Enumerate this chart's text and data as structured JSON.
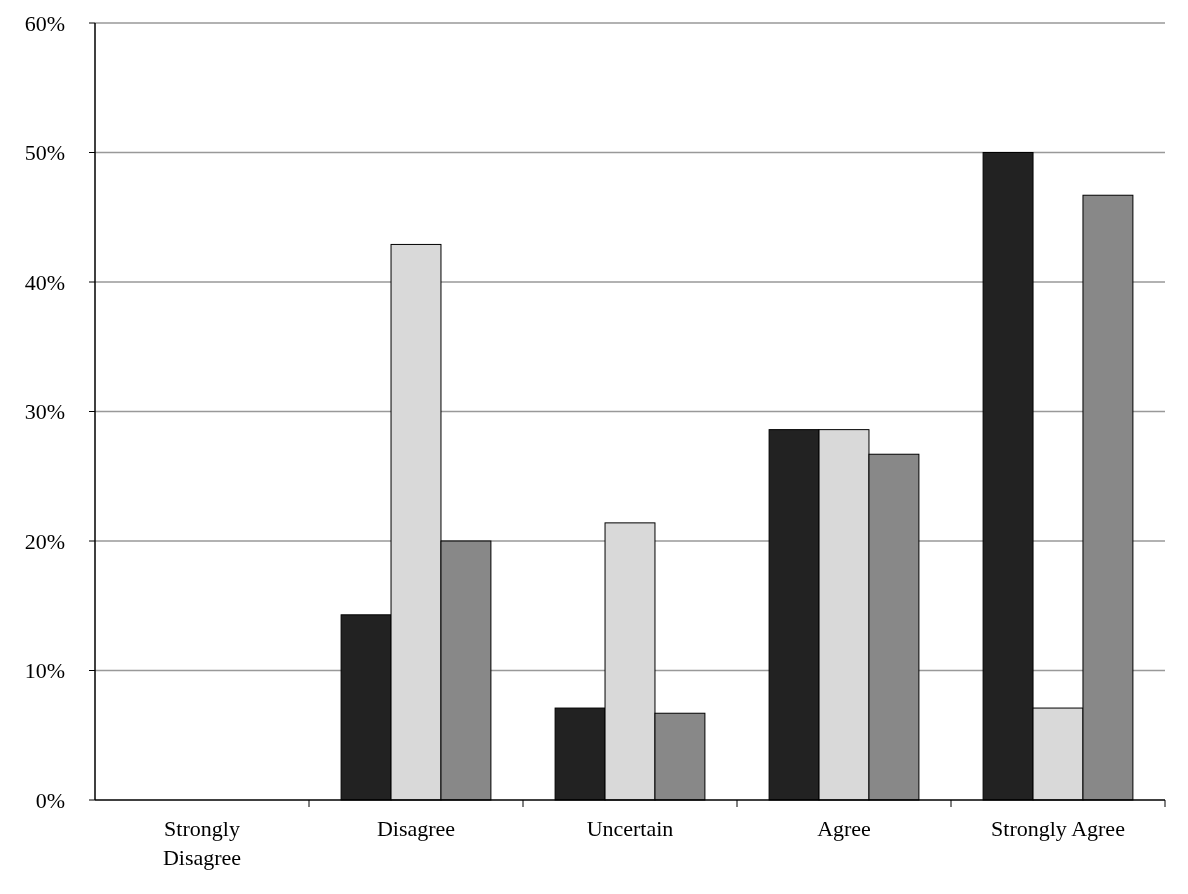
{
  "chart_data": {
    "type": "bar",
    "categories": [
      "Strongly Disagree",
      "Disagree",
      "Uncertain",
      "Agree",
      "Strongly Agree"
    ],
    "series": [
      {
        "color": "#222222",
        "values": [
          0,
          14.3,
          7.1,
          28.6,
          50
        ]
      },
      {
        "color": "#d9d9d9",
        "values": [
          0,
          42.9,
          21.4,
          28.6,
          7.1
        ]
      },
      {
        "color": "#888888",
        "values": [
          0,
          20,
          6.7,
          26.7,
          46.7
        ]
      }
    ],
    "ylim": [
      0,
      60
    ],
    "yticks": [
      {
        "value": 0,
        "label": "0%"
      },
      {
        "value": 10,
        "label": "10%"
      },
      {
        "value": 20,
        "label": "20%"
      },
      {
        "value": 30,
        "label": "30%"
      },
      {
        "value": 40,
        "label": "40%"
      },
      {
        "value": 50,
        "label": "50%"
      },
      {
        "value": 60,
        "label": "60%"
      }
    ],
    "grid": "y"
  }
}
